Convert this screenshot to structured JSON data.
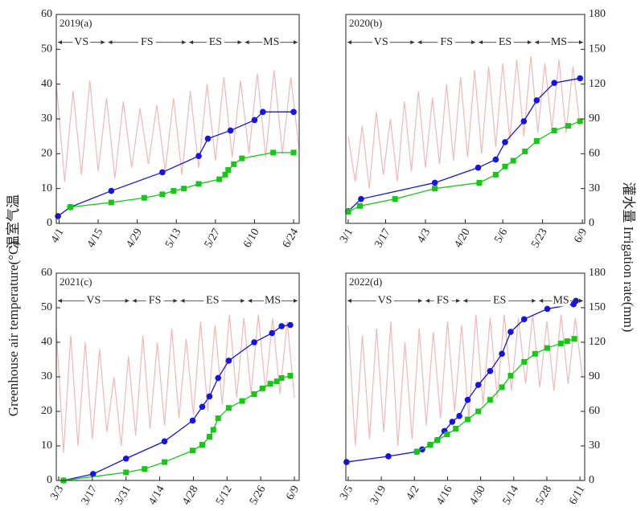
{
  "y_label": "Greenhouse air temperature(°C)",
  "y_label_cn": "温室气温",
  "y2_label": "灌水量 Irrigation rate(mm)",
  "chart_data": [
    {
      "type": "line",
      "title": "2019(a)",
      "xlim": [
        90,
        177
      ],
      "xticks": [
        {
          "value": 91,
          "label": "4/1"
        },
        {
          "value": 105,
          "label": "4/15"
        },
        {
          "value": 119,
          "label": "4/29"
        },
        {
          "value": 133,
          "label": "5/13"
        },
        {
          "value": 147,
          "label": "5/27"
        },
        {
          "value": 161,
          "label": "6/10"
        },
        {
          "value": 175,
          "label": "6/24"
        }
      ],
      "ylim": [
        0,
        60
      ],
      "yticks": [
        0,
        10,
        20,
        30,
        40,
        50,
        60
      ],
      "y2lim": [
        0,
        180
      ],
      "stage_level": 52,
      "stages": [
        {
          "label": "VS",
          "start": 90,
          "end": 108
        },
        {
          "label": "FS",
          "start": 108,
          "end": 137
        },
        {
          "label": "ES",
          "start": 137,
          "end": 157
        },
        {
          "label": "MS",
          "start": 157,
          "end": 177
        }
      ],
      "series": [
        {
          "color": "#f2b8b8",
          "x": [
            90,
            93,
            96,
            99,
            102,
            105,
            108,
            111,
            114,
            117,
            120,
            123,
            126,
            129,
            132,
            135,
            138,
            141,
            144,
            147,
            150,
            153,
            156,
            159,
            162,
            165,
            168,
            171,
            174,
            177
          ],
          "values": [
            40,
            12,
            38,
            14,
            41,
            15,
            36,
            13,
            35,
            16,
            33,
            17,
            34,
            15,
            36,
            14,
            38,
            16,
            40,
            18,
            42,
            19,
            41,
            20,
            43,
            19,
            44,
            20,
            42,
            21
          ]
        },
        {
          "color": "#1414e6",
          "marker": "circle",
          "axis": "y2",
          "x": [
            90.6,
            95,
            109.7,
            128,
            141,
            144.3,
            152.4,
            161,
            164,
            175
          ],
          "values": [
            6.2,
            14,
            28,
            44,
            58,
            73,
            80,
            89,
            96,
            96
          ]
        },
        {
          "color": "#14c814",
          "marker": "square",
          "axis": "y2",
          "x": [
            95,
            109.7,
            121.5,
            128,
            132,
            135.7,
            141,
            148.4,
            150.5,
            151.6,
            153.6,
            156.5,
            167.7,
            175
          ],
          "values": [
            14,
            18,
            22,
            25,
            28,
            30,
            34,
            38,
            42,
            46,
            51,
            56,
            61,
            61
          ]
        }
      ]
    },
    {
      "type": "line",
      "title": "2020(b)",
      "xlim": [
        60,
        162
      ],
      "xticks": [
        {
          "value": 61,
          "label": "3/1"
        },
        {
          "value": 77,
          "label": "3/17"
        },
        {
          "value": 94,
          "label": "4/3"
        },
        {
          "value": 111,
          "label": "4/20"
        },
        {
          "value": 127,
          "label": "5/6"
        },
        {
          "value": 144,
          "label": "5/23"
        },
        {
          "value": 161,
          "label": "6/9"
        }
      ],
      "ylim": [
        0,
        60
      ],
      "y2lim": [
        0,
        180
      ],
      "y2ticks": [
        0,
        30,
        60,
        90,
        120,
        150,
        180
      ],
      "stage_level": 52,
      "stages": [
        {
          "label": "VS",
          "start": 60,
          "end": 90
        },
        {
          "label": "FS",
          "start": 90,
          "end": 116
        },
        {
          "label": "ES",
          "start": 116,
          "end": 140
        },
        {
          "label": "MS",
          "start": 140,
          "end": 162
        }
      ],
      "series": [
        {
          "color": "#f2b8b8",
          "x": [
            61,
            64,
            67,
            70,
            73,
            76,
            79,
            82,
            85,
            88,
            91,
            94,
            97,
            100,
            103,
            106,
            109,
            112,
            115,
            118,
            121,
            124,
            127,
            130,
            133,
            136,
            139,
            142,
            145,
            148,
            151,
            154,
            157,
            160
          ],
          "values": [
            25,
            12,
            28,
            10,
            32,
            14,
            30,
            12,
            35,
            15,
            38,
            16,
            36,
            17,
            40,
            18,
            42,
            19,
            44,
            20,
            45,
            22,
            46,
            24,
            47,
            25,
            48,
            26,
            46,
            27,
            47,
            26,
            45,
            28
          ]
        },
        {
          "color": "#1414e6",
          "marker": "circle",
          "axis": "y2",
          "x": [
            61,
            66.5,
            98,
            116.5,
            124,
            128,
            136,
            141.5,
            149,
            160
          ],
          "values": [
            10.4,
            21,
            35,
            48,
            55,
            70,
            88,
            106,
            121,
            125
          ]
        },
        {
          "color": "#14c814",
          "marker": "square",
          "axis": "y2",
          "x": [
            61,
            66,
            81,
            98,
            117,
            124,
            128,
            131.5,
            136.5,
            141.5,
            149,
            155,
            160
          ],
          "values": [
            10,
            15,
            21,
            30,
            35,
            42,
            49,
            54,
            62,
            71,
            80,
            84,
            88
          ]
        }
      ]
    },
    {
      "type": "line",
      "title": "2021(c)",
      "xlim": [
        61,
        162
      ],
      "xticks": [
        {
          "value": 62,
          "label": "3/3"
        },
        {
          "value": 76,
          "label": "3/17"
        },
        {
          "value": 90,
          "label": "3/31"
        },
        {
          "value": 104,
          "label": "4/14"
        },
        {
          "value": 118,
          "label": "4/28"
        },
        {
          "value": 132,
          "label": "5/12"
        },
        {
          "value": 146,
          "label": "5/26"
        },
        {
          "value": 160,
          "label": "6/9"
        }
      ],
      "ylim": [
        0,
        60
      ],
      "yticks": [
        0,
        10,
        20,
        30,
        40,
        50,
        60
      ],
      "y2lim": [
        0,
        180
      ],
      "stage_level": 52,
      "stages": [
        {
          "label": "VS",
          "start": 61,
          "end": 92
        },
        {
          "label": "FS",
          "start": 92,
          "end": 112
        },
        {
          "label": "ES",
          "start": 112,
          "end": 140
        },
        {
          "label": "MS",
          "start": 140,
          "end": 162
        }
      ],
      "series": [
        {
          "color": "#f2b8b8",
          "x": [
            61,
            64,
            67,
            70,
            73,
            76,
            79,
            82,
            85,
            88,
            91,
            94,
            97,
            100,
            103,
            106,
            109,
            112,
            115,
            118,
            121,
            124,
            127,
            130,
            133,
            136,
            139,
            142,
            145,
            148,
            151,
            154,
            157,
            160
          ],
          "values": [
            44,
            8,
            42,
            10,
            40,
            12,
            38,
            14,
            30,
            10,
            36,
            13,
            42,
            15,
            40,
            16,
            44,
            18,
            41,
            19,
            46,
            20,
            45,
            22,
            48,
            24,
            47,
            25,
            48,
            26,
            47,
            25,
            46,
            24
          ]
        },
        {
          "color": "#1414e6",
          "marker": "circle",
          "axis": "y2",
          "x": [
            64,
            76.3,
            90,
            106,
            117.7,
            121.7,
            124.7,
            128.3,
            132.7,
            143.3,
            150.7,
            154.7,
            158.3
          ],
          "values": [
            0,
            5.6,
            19,
            34,
            52,
            64,
            73,
            89,
            104,
            120,
            128,
            134,
            135
          ]
        },
        {
          "color": "#14c814",
          "marker": "square",
          "axis": "y2",
          "x": [
            64,
            90,
            97.7,
            106,
            117.7,
            121.7,
            124.7,
            126.3,
            128.3,
            132.7,
            138.3,
            143.3,
            146.7,
            150,
            152.7,
            154.7,
            158.3
          ],
          "values": [
            0,
            7,
            10,
            16,
            26,
            31,
            38,
            44,
            54,
            63,
            69,
            75,
            80,
            84,
            86,
            89,
            91
          ]
        }
      ]
    },
    {
      "type": "line",
      "title": "2022(d)",
      "xlim": [
        63,
        164
      ],
      "xticks": [
        {
          "value": 64,
          "label": "3/5"
        },
        {
          "value": 78,
          "label": "3/19"
        },
        {
          "value": 92,
          "label": "4/2"
        },
        {
          "value": 106,
          "label": "4/16"
        },
        {
          "value": 120,
          "label": "4/30"
        },
        {
          "value": 134,
          "label": "5/14"
        },
        {
          "value": 148,
          "label": "5/28"
        },
        {
          "value": 162,
          "label": "6/11"
        }
      ],
      "ylim": [
        0,
        60
      ],
      "y2lim": [
        0,
        180
      ],
      "y2ticks": [
        0,
        30,
        60,
        90,
        120,
        150,
        180
      ],
      "stage_level": 52,
      "stages": [
        {
          "label": "VS",
          "start": 63,
          "end": 96
        },
        {
          "label": "FS",
          "start": 96,
          "end": 112
        },
        {
          "label": "ES",
          "start": 112,
          "end": 144
        },
        {
          "label": "MS",
          "start": 144,
          "end": 164
        }
      ],
      "series": [
        {
          "color": "#f2b8b8",
          "x": [
            64,
            67,
            70,
            73,
            76,
            79,
            82,
            85,
            88,
            91,
            94,
            97,
            100,
            103,
            106,
            109,
            112,
            115,
            118,
            121,
            124,
            127,
            130,
            133,
            136,
            139,
            142,
            145,
            148,
            151,
            154,
            157,
            160,
            163
          ],
          "values": [
            45,
            10,
            42,
            12,
            44,
            14,
            46,
            10,
            40,
            12,
            44,
            16,
            43,
            18,
            46,
            20,
            45,
            18,
            48,
            22,
            47,
            24,
            48,
            26,
            47,
            28,
            48,
            27,
            46,
            26,
            48,
            28,
            47,
            30
          ]
        },
        {
          "color": "#1414e6",
          "marker": "circle",
          "axis": "y2",
          "x": [
            63.3,
            81,
            93,
            95.3,
            98.7,
            101.7,
            104.7,
            108,
            111,
            114.5,
            119,
            124,
            129,
            132.7,
            138.4,
            148.2,
            159.3,
            160.3
          ],
          "values": [
            16,
            21,
            25,
            27,
            31,
            35,
            43,
            51,
            56,
            70,
            83,
            95,
            110,
            129,
            140,
            149,
            153,
            156
          ]
        },
        {
          "color": "#14c814",
          "marker": "square",
          "axis": "y2",
          "x": [
            93,
            98.7,
            101.7,
            105.8,
            109.5,
            114.5,
            119,
            124,
            129,
            132.7,
            138.4,
            143,
            148.2,
            153.9,
            156.6,
            159.6
          ],
          "values": [
            25,
            31,
            35,
            40,
            45,
            53,
            60,
            70,
            81,
            91,
            103,
            110,
            115,
            119,
            121,
            123
          ]
        }
      ]
    }
  ]
}
